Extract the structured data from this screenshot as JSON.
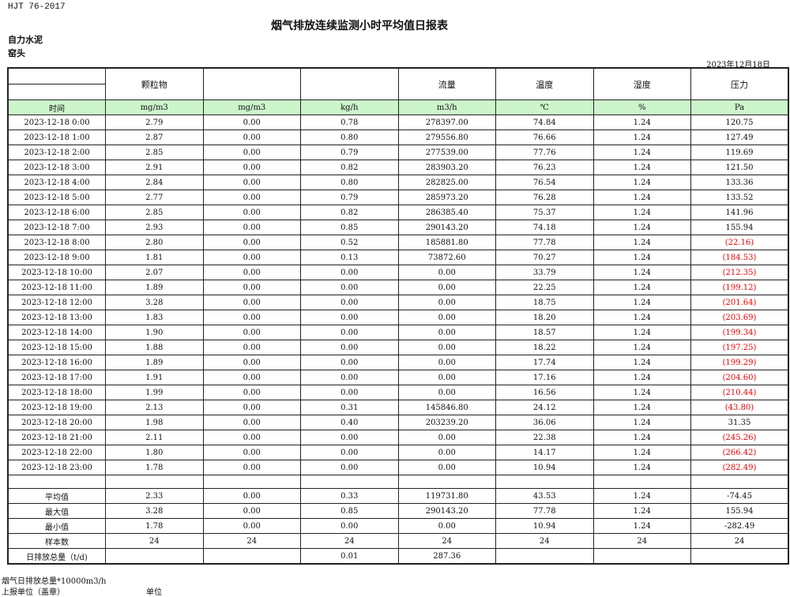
{
  "standard": "HJT  76-2017",
  "title": "烟气排放连续监测小时平均值日报表",
  "company": "自力水泥",
  "unit": "窑头",
  "date": "2023年12月18日",
  "headers": [
    "",
    "颗粒物",
    "",
    "",
    "流量",
    "温度",
    "湿度",
    "压力"
  ],
  "units": [
    "时间",
    "mg/m3",
    "mg/m3",
    "kg/h",
    "m3/h",
    "℃",
    "%",
    "Pa"
  ],
  "rows": [
    [
      "2023-12-18 0:00",
      "2.79",
      "0.00",
      "0.78",
      "278397.00",
      "74.84",
      "1.24",
      "120.75"
    ],
    [
      "2023-12-18 1:00",
      "2.87",
      "0.00",
      "0.80",
      "279556.80",
      "76.66",
      "1.24",
      "127.49"
    ],
    [
      "2023-12-18 2:00",
      "2.85",
      "0.00",
      "0.79",
      "277539.00",
      "77.76",
      "1.24",
      "119.69"
    ],
    [
      "2023-12-18 3:00",
      "2.91",
      "0.00",
      "0.82",
      "283903.20",
      "76.23",
      "1.24",
      "121.50"
    ],
    [
      "2023-12-18 4:00",
      "2.84",
      "0.00",
      "0.80",
      "282825.00",
      "76.54",
      "1.24",
      "133.36"
    ],
    [
      "2023-12-18 5:00",
      "2.77",
      "0.00",
      "0.79",
      "285973.20",
      "76.28",
      "1.24",
      "133.52"
    ],
    [
      "2023-12-18 6:00",
      "2.85",
      "0.00",
      "0.82",
      "286385.40",
      "75.37",
      "1.24",
      "141.96"
    ],
    [
      "2023-12-18 7:00",
      "2.93",
      "0.00",
      "0.85",
      "290143.20",
      "74.18",
      "1.24",
      "155.94"
    ],
    [
      "2023-12-18 8:00",
      "2.80",
      "0.00",
      "0.52",
      "185881.80",
      "77.78",
      "1.24",
      "(22.16)"
    ],
    [
      "2023-12-18 9:00",
      "1.81",
      "0.00",
      "0.13",
      "73872.60",
      "70.27",
      "1.24",
      "(184.53)"
    ],
    [
      "2023-12-18 10:00",
      "2.07",
      "0.00",
      "0.00",
      "0.00",
      "33.79",
      "1.24",
      "(212.35)"
    ],
    [
      "2023-12-18 11:00",
      "1.89",
      "0.00",
      "0.00",
      "0.00",
      "22.25",
      "1.24",
      "(199.12)"
    ],
    [
      "2023-12-18 12:00",
      "3.28",
      "0.00",
      "0.00",
      "0.00",
      "18.75",
      "1.24",
      "(201.64)"
    ],
    [
      "2023-12-18 13:00",
      "1.83",
      "0.00",
      "0.00",
      "0.00",
      "18.20",
      "1.24",
      "(203.69)"
    ],
    [
      "2023-12-18 14:00",
      "1.90",
      "0.00",
      "0.00",
      "0.00",
      "18.57",
      "1.24",
      "(199.34)"
    ],
    [
      "2023-12-18 15:00",
      "1.88",
      "0.00",
      "0.00",
      "0.00",
      "18.22",
      "1.24",
      "(197.25)"
    ],
    [
      "2023-12-18 16:00",
      "1.89",
      "0.00",
      "0.00",
      "0.00",
      "17.74",
      "1.24",
      "(199.29)"
    ],
    [
      "2023-12-18 17:00",
      "1.91",
      "0.00",
      "0.00",
      "0.00",
      "17.16",
      "1.24",
      "(204.60)"
    ],
    [
      "2023-12-18 18:00",
      "1.99",
      "0.00",
      "0.00",
      "0.00",
      "16.56",
      "1.24",
      "(210.44)"
    ],
    [
      "2023-12-18 19:00",
      "2.13",
      "0.00",
      "0.31",
      "145846.80",
      "24.12",
      "1.24",
      "(43.80)"
    ],
    [
      "2023-12-18 20:00",
      "1.98",
      "0.00",
      "0.40",
      "203239.20",
      "36.06",
      "1.24",
      "31.35"
    ],
    [
      "2023-12-18 21:00",
      "2.11",
      "0.00",
      "0.00",
      "0.00",
      "22.38",
      "1.24",
      "(245.26)"
    ],
    [
      "2023-12-18 22:00",
      "1.80",
      "0.00",
      "0.00",
      "0.00",
      "14.17",
      "1.24",
      "(266.42)"
    ],
    [
      "2023-12-18 23:00",
      "1.78",
      "0.00",
      "0.00",
      "0.00",
      "10.94",
      "1.24",
      "(282.49)"
    ]
  ],
  "summary": [
    [
      "平均值",
      "2.33",
      "0.00",
      "0.33",
      "119731.80",
      "43.53",
      "1.24",
      "-74.45"
    ],
    [
      "最大值",
      "3.28",
      "0.00",
      "0.85",
      "290143.20",
      "77.78",
      "1.24",
      "155.94"
    ],
    [
      "最小值",
      "1.78",
      "0.00",
      "0.00",
      "0.00",
      "10.94",
      "1.24",
      "-282.49"
    ],
    [
      "样本数",
      "24",
      "24",
      "24",
      "24",
      "24",
      "24",
      "24"
    ],
    [
      "日排放总量（t/d)",
      "",
      "",
      "0.01",
      "287.36",
      "",
      "",
      ""
    ]
  ],
  "negative_color": "#ee0000",
  "unit_row_color": "#ccf5cc",
  "footer": {
    "note": "烟气日排放总量*10000m3/h",
    "reporter": "上报单位（盖章）",
    "unit_label": "单位"
  }
}
